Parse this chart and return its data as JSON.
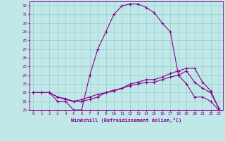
{
  "xlabel": "Windchill (Refroidissement éolien,°C)",
  "xlim": [
    -0.5,
    23.5
  ],
  "ylim": [
    20,
    32.5
  ],
  "yticks": [
    20,
    21,
    22,
    23,
    24,
    25,
    26,
    27,
    28,
    29,
    30,
    31,
    32
  ],
  "xticks": [
    0,
    1,
    2,
    3,
    4,
    5,
    6,
    7,
    8,
    9,
    10,
    11,
    12,
    13,
    14,
    15,
    16,
    17,
    18,
    19,
    20,
    21,
    22,
    23
  ],
  "bg_color": "#c0e8e8",
  "grid_color": "#98cccc",
  "line_color": "#880088",
  "line1_x": [
    0,
    1,
    2,
    3,
    4,
    5,
    6,
    7,
    8,
    9,
    10,
    11,
    12,
    13,
    14,
    15,
    16,
    17,
    18,
    19,
    20,
    21,
    22,
    23
  ],
  "line1_y": [
    22,
    22,
    22,
    21,
    21,
    20,
    20,
    24,
    27,
    29,
    31,
    32,
    32.2,
    32.2,
    31.8,
    31.2,
    30,
    29,
    24,
    23,
    21.5,
    21.5,
    21,
    20
  ],
  "line2_x": [
    0,
    1,
    2,
    3,
    4,
    5,
    6,
    7,
    8,
    9,
    10,
    11,
    12,
    13,
    14,
    15,
    16,
    17,
    18,
    19,
    20,
    21,
    22,
    23
  ],
  "line2_y": [
    22,
    22,
    22,
    21.5,
    21.2,
    21,
    21,
    21.2,
    21.5,
    22,
    22.2,
    22.5,
    22.8,
    23,
    23.2,
    23.2,
    23.5,
    23.8,
    24,
    24.5,
    23.2,
    22.5,
    22,
    20.2
  ],
  "line3_x": [
    0,
    1,
    2,
    3,
    4,
    5,
    6,
    7,
    8,
    9,
    10,
    11,
    12,
    13,
    14,
    15,
    16,
    17,
    18,
    19,
    20,
    21,
    22,
    23
  ],
  "line3_y": [
    22,
    22,
    22,
    21.5,
    21.3,
    21,
    21.2,
    21.5,
    21.8,
    22,
    22.3,
    22.5,
    23,
    23.2,
    23.5,
    23.5,
    23.8,
    24.2,
    24.5,
    24.8,
    24.8,
    23.2,
    22.2,
    20.2
  ]
}
